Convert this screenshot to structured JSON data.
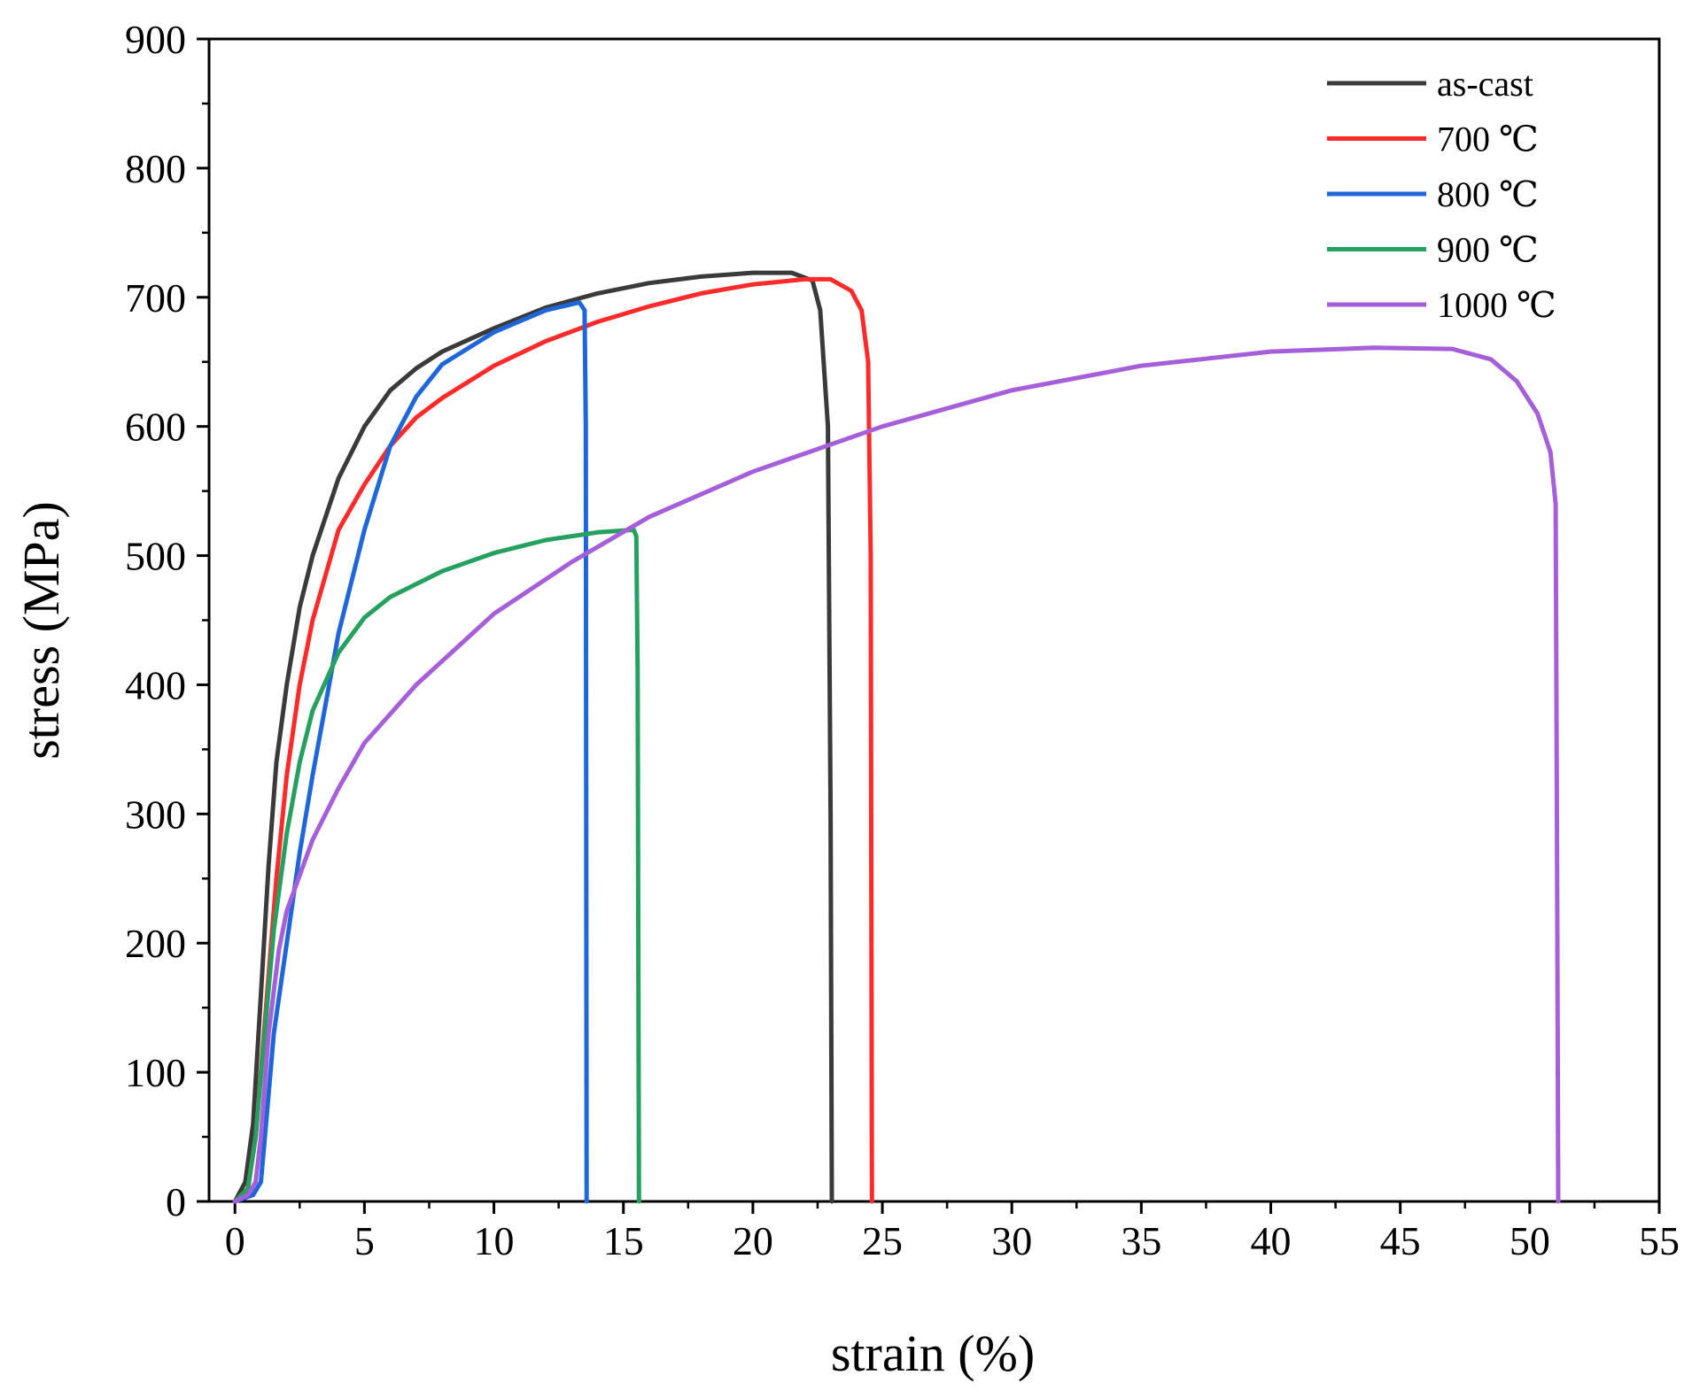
{
  "chart_data": {
    "type": "line",
    "xlabel": "strain (%)",
    "ylabel": "stress (MPa)",
    "xlim": [
      -1,
      55
    ],
    "ylim": [
      0,
      900
    ],
    "xticks": [
      0,
      5,
      10,
      15,
      20,
      25,
      30,
      35,
      40,
      45,
      50,
      55
    ],
    "yticks": [
      0,
      100,
      200,
      300,
      400,
      500,
      600,
      700,
      800,
      900
    ],
    "legend_position": "top-right",
    "series": [
      {
        "name": "as-cast",
        "color": "#3a3a3a",
        "points": [
          [
            0,
            0
          ],
          [
            0.4,
            15
          ],
          [
            0.7,
            60
          ],
          [
            1.0,
            160
          ],
          [
            1.3,
            260
          ],
          [
            1.6,
            340
          ],
          [
            2,
            400
          ],
          [
            2.5,
            460
          ],
          [
            3,
            500
          ],
          [
            4,
            560
          ],
          [
            5,
            600
          ],
          [
            6,
            628
          ],
          [
            7,
            645
          ],
          [
            8,
            658
          ],
          [
            10,
            676
          ],
          [
            12,
            692
          ],
          [
            14,
            703
          ],
          [
            16,
            711
          ],
          [
            18,
            716
          ],
          [
            20,
            719
          ],
          [
            21.5,
            719
          ],
          [
            22.3,
            713
          ],
          [
            22.6,
            690
          ],
          [
            22.9,
            600
          ],
          [
            23.0,
            300
          ],
          [
            23.05,
            0
          ]
        ]
      },
      {
        "name": "700 ℃",
        "color": "#ff2b2b",
        "points": [
          [
            0,
            0
          ],
          [
            0.5,
            10
          ],
          [
            0.8,
            50
          ],
          [
            1.2,
            150
          ],
          [
            1.6,
            250
          ],
          [
            2,
            330
          ],
          [
            2.5,
            400
          ],
          [
            3,
            450
          ],
          [
            4,
            520
          ],
          [
            5,
            555
          ],
          [
            6,
            585
          ],
          [
            7,
            607
          ],
          [
            8,
            622
          ],
          [
            10,
            647
          ],
          [
            12,
            666
          ],
          [
            14,
            681
          ],
          [
            16,
            693
          ],
          [
            18,
            703
          ],
          [
            20,
            710
          ],
          [
            22,
            714
          ],
          [
            23,
            714
          ],
          [
            23.8,
            705
          ],
          [
            24.2,
            690
          ],
          [
            24.45,
            650
          ],
          [
            24.55,
            500
          ],
          [
            24.6,
            0
          ]
        ]
      },
      {
        "name": "800 ℃",
        "color": "#1f67d9",
        "points": [
          [
            0,
            0
          ],
          [
            0.7,
            5
          ],
          [
            1.0,
            15
          ],
          [
            1.2,
            60
          ],
          [
            1.5,
            130
          ],
          [
            2,
            200
          ],
          [
            2.5,
            270
          ],
          [
            3,
            330
          ],
          [
            4,
            440
          ],
          [
            5,
            520
          ],
          [
            6,
            585
          ],
          [
            7,
            623
          ],
          [
            8,
            648
          ],
          [
            10,
            673
          ],
          [
            12,
            690
          ],
          [
            13.3,
            696
          ],
          [
            13.5,
            690
          ],
          [
            13.55,
            600
          ],
          [
            13.58,
            0
          ]
        ]
      },
      {
        "name": "900 ℃",
        "color": "#26a05e",
        "points": [
          [
            0,
            0
          ],
          [
            0.5,
            10
          ],
          [
            0.8,
            50
          ],
          [
            1.1,
            120
          ],
          [
            1.5,
            210
          ],
          [
            2,
            285
          ],
          [
            2.5,
            340
          ],
          [
            3,
            380
          ],
          [
            4,
            425
          ],
          [
            5,
            452
          ],
          [
            6,
            468
          ],
          [
            8,
            488
          ],
          [
            10,
            502
          ],
          [
            12,
            512
          ],
          [
            14,
            518
          ],
          [
            15.4,
            520
          ],
          [
            15.5,
            515
          ],
          [
            15.55,
            410
          ],
          [
            15.6,
            0
          ]
        ]
      },
      {
        "name": "1000 ℃",
        "color": "#a55fd9",
        "points": [
          [
            0,
            0
          ],
          [
            0.5,
            5
          ],
          [
            0.8,
            15
          ],
          [
            1.0,
            50
          ],
          [
            1.3,
            130
          ],
          [
            1.7,
            195
          ],
          [
            2,
            225
          ],
          [
            3,
            280
          ],
          [
            4,
            320
          ],
          [
            5,
            355
          ],
          [
            7,
            400
          ],
          [
            10,
            455
          ],
          [
            13,
            495
          ],
          [
            16,
            530
          ],
          [
            20,
            565
          ],
          [
            25,
            600
          ],
          [
            30,
            628
          ],
          [
            35,
            647
          ],
          [
            40,
            658
          ],
          [
            44,
            661
          ],
          [
            47,
            660
          ],
          [
            48.5,
            652
          ],
          [
            49.5,
            635
          ],
          [
            50.3,
            610
          ],
          [
            50.8,
            580
          ],
          [
            51.0,
            540
          ],
          [
            51.05,
            300
          ],
          [
            51.1,
            0
          ]
        ]
      }
    ]
  }
}
